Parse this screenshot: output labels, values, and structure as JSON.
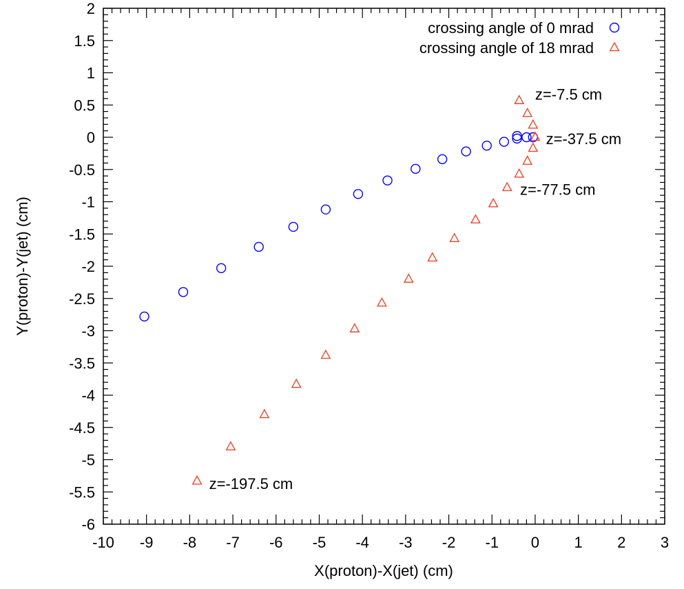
{
  "chart_data": {
    "type": "scatter",
    "xlabel": "X(proton)-X(jet) (cm)",
    "ylabel": "Y(proton)-Y(jet) (cm)",
    "xlim": [
      -10,
      3
    ],
    "ylim": [
      -6,
      2
    ],
    "x_ticks": [
      "-10",
      "-9",
      "-8",
      "-7",
      "-6",
      "-5",
      "-4",
      "-3",
      "-2",
      "-1",
      "0",
      "1",
      "2",
      "3"
    ],
    "y_ticks": [
      "-6",
      "-5.5",
      "-5",
      "-4.5",
      "-4",
      "-3.5",
      "-3",
      "-2.5",
      "-2",
      "-1.5",
      "-1",
      "-0.5",
      "0",
      "0.5",
      "1",
      "1.5",
      "2"
    ],
    "grid": false,
    "legend_position": "top-right",
    "series": [
      {
        "name": "crossing angle of 0 mrad",
        "marker": "circle",
        "color": "#0000ff",
        "points": [
          [
            -9.05,
            -2.78
          ],
          [
            -8.15,
            -2.4
          ],
          [
            -7.27,
            -2.03
          ],
          [
            -6.4,
            -1.7
          ],
          [
            -5.6,
            -1.39
          ],
          [
            -4.85,
            -1.12
          ],
          [
            -4.1,
            -0.88
          ],
          [
            -3.42,
            -0.67
          ],
          [
            -2.77,
            -0.49
          ],
          [
            -2.15,
            -0.34
          ],
          [
            -1.6,
            -0.22
          ],
          [
            -1.12,
            -0.13
          ],
          [
            -0.72,
            -0.07
          ],
          [
            -0.42,
            -0.02
          ],
          [
            -0.2,
            0.0
          ],
          [
            -0.05,
            0.0
          ],
          [
            -0.42,
            0.02
          ]
        ]
      },
      {
        "name": "crossing angle of 18 mrad",
        "marker": "triangle",
        "color": "#e8482a",
        "points": [
          [
            -0.37,
            0.57
          ],
          [
            -0.18,
            0.37
          ],
          [
            -0.05,
            0.19
          ],
          [
            0.0,
            0.0
          ],
          [
            -0.05,
            -0.17
          ],
          [
            -0.18,
            -0.37
          ],
          [
            -0.37,
            -0.57
          ],
          [
            -0.65,
            -0.78
          ],
          [
            -0.97,
            -1.03
          ],
          [
            -1.38,
            -1.28
          ],
          [
            -1.87,
            -1.57
          ],
          [
            -2.38,
            -1.87
          ],
          [
            -2.93,
            -2.2
          ],
          [
            -3.55,
            -2.57
          ],
          [
            -4.18,
            -2.97
          ],
          [
            -4.85,
            -3.38
          ],
          [
            -5.53,
            -3.83
          ],
          [
            -6.27,
            -4.3
          ],
          [
            -7.05,
            -4.8
          ],
          [
            -7.83,
            -5.33
          ]
        ]
      }
    ],
    "annotations": [
      {
        "text": "z=-7.5 cm",
        "x": 0.0,
        "y": 0.67
      },
      {
        "text": "z=-37.5 cm",
        "x": 0.25,
        "y": -0.02
      },
      {
        "text": "z=-77.5 cm",
        "x": -0.35,
        "y": -0.81
      },
      {
        "text": "z=-197.5 cm",
        "x": -7.55,
        "y": -5.37
      }
    ]
  }
}
